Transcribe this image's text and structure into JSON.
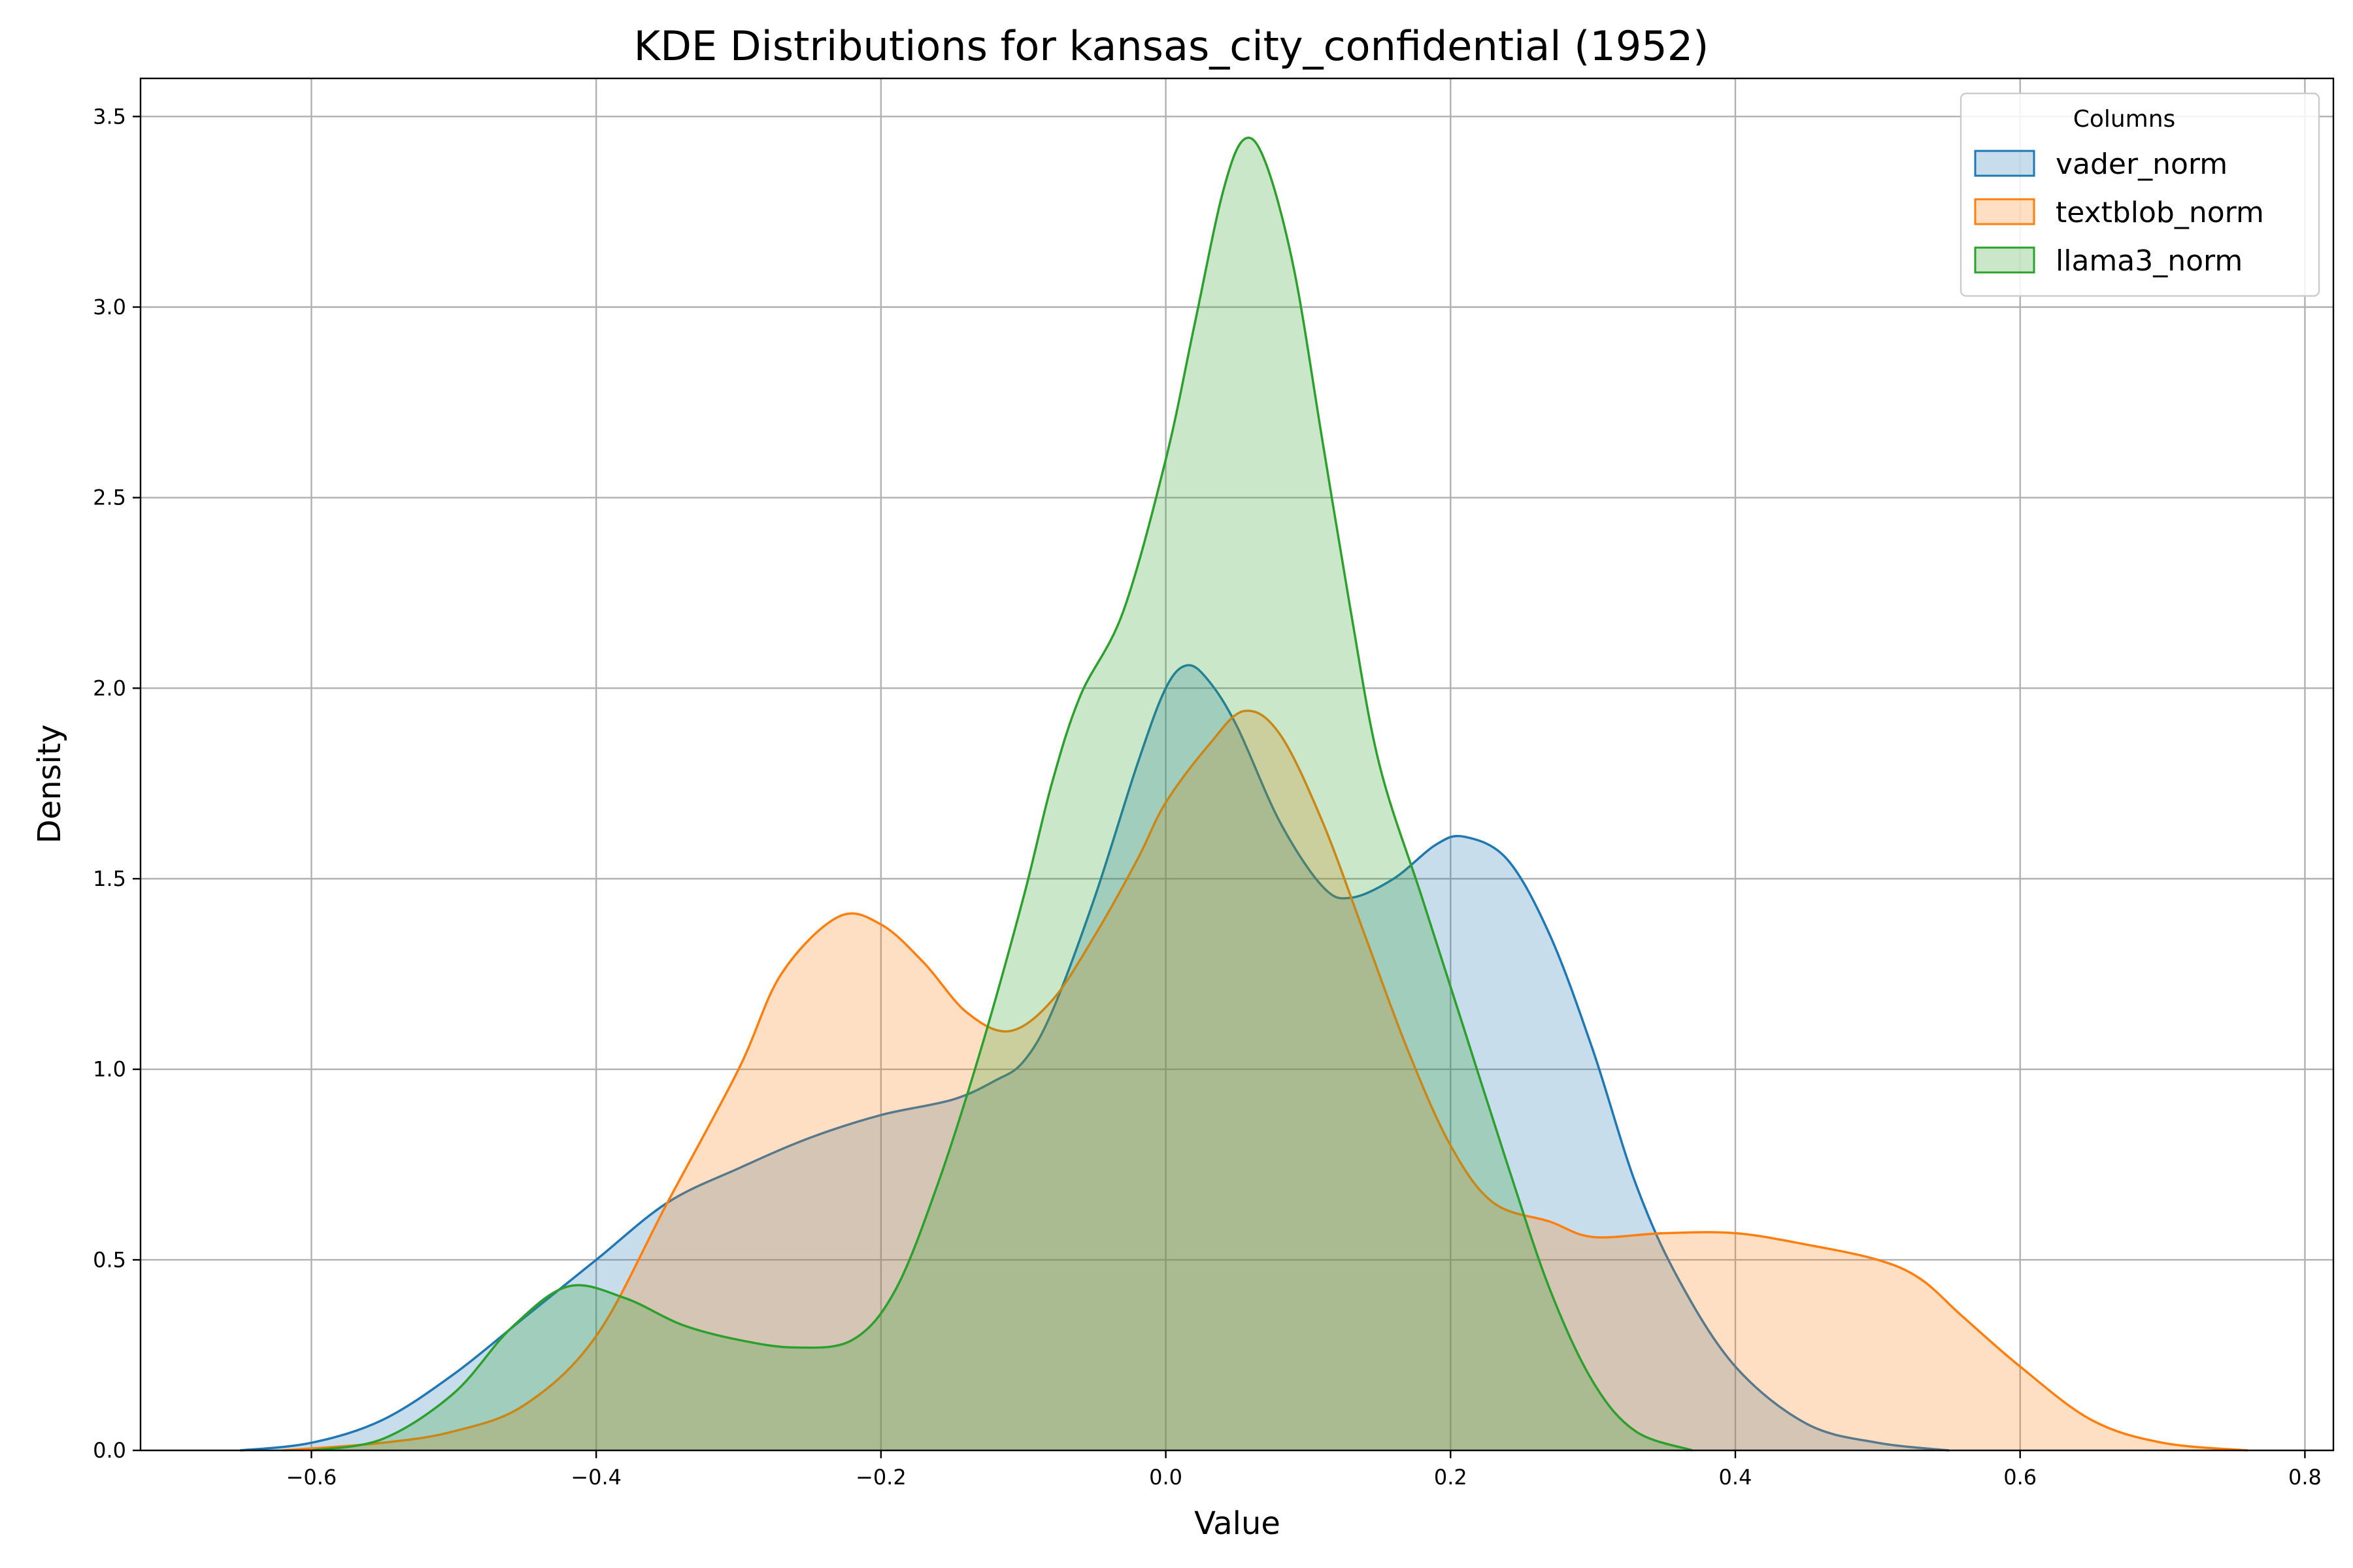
{
  "chart_data": {
    "type": "area",
    "title": "KDE Distributions for kansas_city_confidential (1952)",
    "xlabel": "Value",
    "ylabel": "Density",
    "xlim": [
      -0.72,
      0.82
    ],
    "ylim": [
      0,
      3.6
    ],
    "xticks": [
      -0.6,
      -0.4,
      -0.2,
      0.0,
      0.2,
      0.4,
      0.6,
      0.8
    ],
    "xtick_labels": [
      "−0.6",
      "−0.4",
      "−0.2",
      "0.0",
      "0.2",
      "0.4",
      "0.6",
      "0.8"
    ],
    "yticks": [
      0.0,
      0.5,
      1.0,
      1.5,
      2.0,
      2.5,
      3.0,
      3.5
    ],
    "ytick_labels": [
      "0.0",
      "0.5",
      "1.0",
      "1.5",
      "2.0",
      "2.5",
      "3.0",
      "3.5"
    ],
    "grid": true,
    "legend": {
      "title": "Columns",
      "position": "top-right"
    },
    "series": [
      {
        "name": "vader_norm",
        "color": "#1f77b4",
        "points": [
          [
            -0.65,
            0.0
          ],
          [
            -0.6,
            0.02
          ],
          [
            -0.55,
            0.08
          ],
          [
            -0.5,
            0.2
          ],
          [
            -0.45,
            0.35
          ],
          [
            -0.4,
            0.5
          ],
          [
            -0.35,
            0.65
          ],
          [
            -0.3,
            0.74
          ],
          [
            -0.25,
            0.82
          ],
          [
            -0.2,
            0.88
          ],
          [
            -0.15,
            0.92
          ],
          [
            -0.12,
            0.97
          ],
          [
            -0.1,
            1.02
          ],
          [
            -0.08,
            1.15
          ],
          [
            -0.05,
            1.45
          ],
          [
            -0.02,
            1.8
          ],
          [
            0.0,
            2.0
          ],
          [
            0.015,
            2.06
          ],
          [
            0.03,
            2.02
          ],
          [
            0.05,
            1.9
          ],
          [
            0.08,
            1.65
          ],
          [
            0.11,
            1.48
          ],
          [
            0.13,
            1.45
          ],
          [
            0.16,
            1.5
          ],
          [
            0.19,
            1.59
          ],
          [
            0.21,
            1.61
          ],
          [
            0.24,
            1.55
          ],
          [
            0.27,
            1.35
          ],
          [
            0.3,
            1.05
          ],
          [
            0.33,
            0.7
          ],
          [
            0.36,
            0.45
          ],
          [
            0.4,
            0.22
          ],
          [
            0.45,
            0.07
          ],
          [
            0.5,
            0.02
          ],
          [
            0.55,
            0.0
          ]
        ]
      },
      {
        "name": "textblob_norm",
        "color": "#ff7f0e",
        "points": [
          [
            -0.62,
            0.0
          ],
          [
            -0.55,
            0.02
          ],
          [
            -0.5,
            0.05
          ],
          [
            -0.45,
            0.12
          ],
          [
            -0.4,
            0.3
          ],
          [
            -0.35,
            0.65
          ],
          [
            -0.3,
            1.0
          ],
          [
            -0.27,
            1.25
          ],
          [
            -0.23,
            1.4
          ],
          [
            -0.2,
            1.38
          ],
          [
            -0.17,
            1.28
          ],
          [
            -0.14,
            1.15
          ],
          [
            -0.11,
            1.1
          ],
          [
            -0.08,
            1.18
          ],
          [
            -0.05,
            1.35
          ],
          [
            -0.02,
            1.55
          ],
          [
            0.0,
            1.7
          ],
          [
            0.03,
            1.85
          ],
          [
            0.055,
            1.94
          ],
          [
            0.08,
            1.88
          ],
          [
            0.11,
            1.65
          ],
          [
            0.14,
            1.35
          ],
          [
            0.17,
            1.05
          ],
          [
            0.2,
            0.8
          ],
          [
            0.23,
            0.65
          ],
          [
            0.27,
            0.6
          ],
          [
            0.3,
            0.56
          ],
          [
            0.35,
            0.57
          ],
          [
            0.4,
            0.57
          ],
          [
            0.45,
            0.54
          ],
          [
            0.5,
            0.5
          ],
          [
            0.53,
            0.45
          ],
          [
            0.56,
            0.35
          ],
          [
            0.6,
            0.22
          ],
          [
            0.65,
            0.08
          ],
          [
            0.7,
            0.02
          ],
          [
            0.76,
            0.0
          ]
        ]
      },
      {
        "name": "llama3_norm",
        "color": "#2ca02c",
        "points": [
          [
            -0.6,
            0.0
          ],
          [
            -0.55,
            0.03
          ],
          [
            -0.5,
            0.15
          ],
          [
            -0.46,
            0.32
          ],
          [
            -0.42,
            0.43
          ],
          [
            -0.38,
            0.4
          ],
          [
            -0.34,
            0.33
          ],
          [
            -0.3,
            0.29
          ],
          [
            -0.26,
            0.27
          ],
          [
            -0.22,
            0.29
          ],
          [
            -0.19,
            0.42
          ],
          [
            -0.16,
            0.7
          ],
          [
            -0.13,
            1.05
          ],
          [
            -0.1,
            1.45
          ],
          [
            -0.08,
            1.75
          ],
          [
            -0.06,
            1.98
          ],
          [
            -0.03,
            2.2
          ],
          [
            0.0,
            2.6
          ],
          [
            0.02,
            2.95
          ],
          [
            0.04,
            3.3
          ],
          [
            0.055,
            3.44
          ],
          [
            0.07,
            3.38
          ],
          [
            0.09,
            3.1
          ],
          [
            0.11,
            2.65
          ],
          [
            0.13,
            2.2
          ],
          [
            0.15,
            1.8
          ],
          [
            0.18,
            1.45
          ],
          [
            0.21,
            1.1
          ],
          [
            0.24,
            0.75
          ],
          [
            0.27,
            0.42
          ],
          [
            0.3,
            0.18
          ],
          [
            0.33,
            0.05
          ],
          [
            0.37,
            0.0
          ]
        ]
      }
    ]
  }
}
